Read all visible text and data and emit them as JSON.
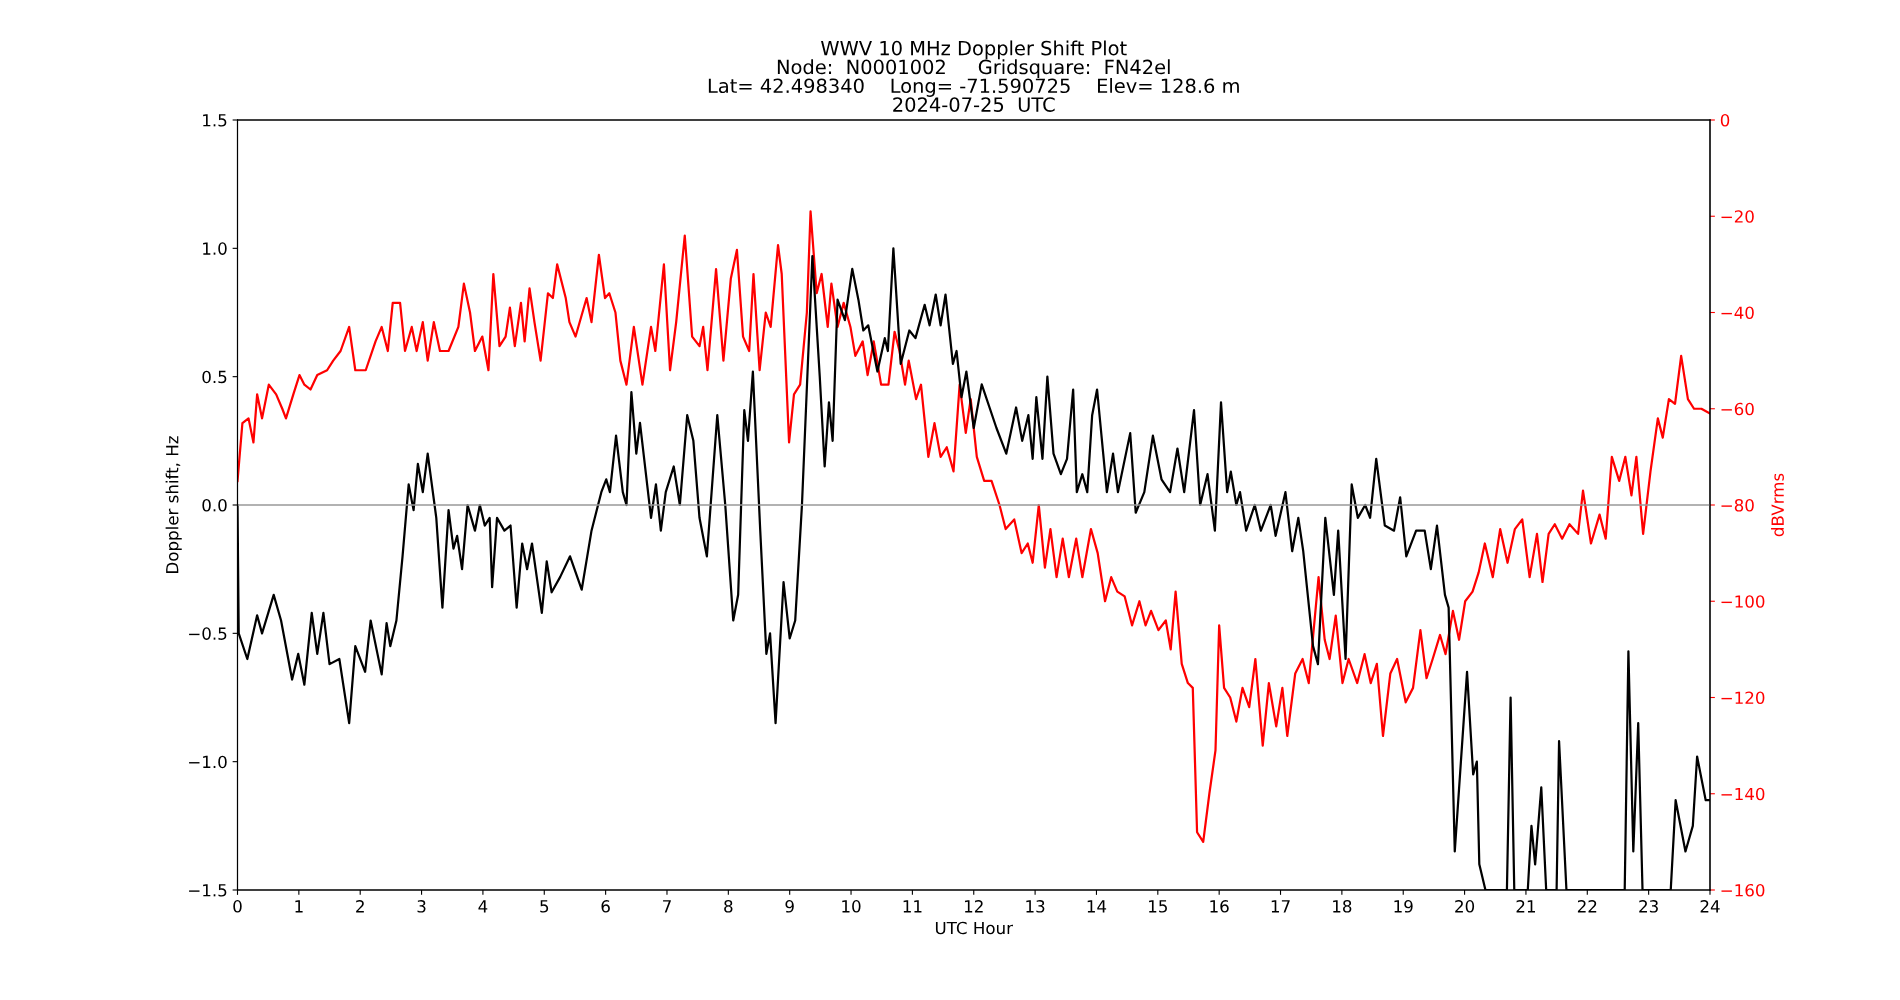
{
  "chart_data": {
    "type": "line",
    "title": "WWV 10 MHz Doppler Shift Plot\nNode:  N0001002     Gridsquare:  FN42el\nLat= 42.498340    Long= -71.590725    Elev= 128.6 m\n2024-07-25  UTC",
    "xlabel": "UTC Hour",
    "ylabel": "Doppler shift, Hz",
    "y2label": "dBVrms",
    "xlim": [
      0,
      24
    ],
    "xticks": [
      0,
      1,
      2,
      3,
      4,
      5,
      6,
      7,
      8,
      9,
      10,
      11,
      12,
      13,
      14,
      15,
      16,
      17,
      18,
      19,
      20,
      21,
      22,
      23,
      24
    ],
    "ylim": [
      -1.5,
      1.5
    ],
    "yticks": [
      {
        "value": -1.5,
        "label": "−1.5"
      },
      {
        "value": -1.0,
        "label": "−1.0"
      },
      {
        "value": -0.5,
        "label": "−0.5"
      },
      {
        "value": 0.0,
        "label": "0.0"
      },
      {
        "value": 0.5,
        "label": "0.5"
      },
      {
        "value": 1.0,
        "label": "1.0"
      },
      {
        "value": 1.5,
        "label": "1.5"
      }
    ],
    "y2lim": [
      -160,
      0
    ],
    "y2ticks": [
      {
        "value": -160,
        "label": "−160"
      },
      {
        "value": -140,
        "label": "−140"
      },
      {
        "value": -120,
        "label": "−120"
      },
      {
        "value": -100,
        "label": "−100"
      },
      {
        "value": -80,
        "label": "−80"
      },
      {
        "value": -60,
        "label": "−60"
      },
      {
        "value": -40,
        "label": "−40"
      },
      {
        "value": -20,
        "label": "−20"
      },
      {
        "value": 0,
        "label": "0"
      }
    ],
    "grid": false,
    "legend": false,
    "ref_lines": [
      {
        "axis": "y",
        "value": 0,
        "color": "#999999"
      }
    ],
    "series": [
      {
        "color": "#000000",
        "axis": "y",
        "x": [
          0,
          0.02,
          0.16,
          0.32,
          0.4,
          0.59,
          0.71,
          0.89,
          0.99,
          1.09,
          1.21,
          1.3,
          1.4,
          1.5,
          1.66,
          1.82,
          1.92,
          2.08,
          2.17,
          2.35,
          2.43,
          2.49,
          2.59,
          2.69,
          2.79,
          2.87,
          2.94,
          3.02,
          3.1,
          3.24,
          3.34,
          3.44,
          3.52,
          3.58,
          3.66,
          3.75,
          3.87,
          3.95,
          4.03,
          4.11,
          4.15,
          4.23,
          4.35,
          4.45,
          4.55,
          4.64,
          4.72,
          4.8,
          4.96,
          5.04,
          5.12,
          5.26,
          5.42,
          5.61,
          5.77,
          5.93,
          6.01,
          6.07,
          6.17,
          6.28,
          6.34,
          6.42,
          6.5,
          6.56,
          6.74,
          6.82,
          6.9,
          6.98,
          7.11,
          7.21,
          7.33,
          7.43,
          7.53,
          7.65,
          7.82,
          7.95,
          8.08,
          8.16,
          8.26,
          8.32,
          8.4,
          8.52,
          8.62,
          8.68,
          8.77,
          8.9,
          9.0,
          9.09,
          9.2,
          9.37,
          9.49,
          9.57,
          9.64,
          9.7,
          9.78,
          9.9,
          10.02,
          10.12,
          10.2,
          10.28,
          10.43,
          10.55,
          10.6,
          10.69,
          10.81,
          10.95,
          11.05,
          11.2,
          11.28,
          11.38,
          11.46,
          11.54,
          11.66,
          11.72,
          11.8,
          11.88,
          12.0,
          12.13,
          12.37,
          12.53,
          12.69,
          12.79,
          12.89,
          12.96,
          13.02,
          13.12,
          13.2,
          13.3,
          13.42,
          13.52,
          13.62,
          13.68,
          13.77,
          13.85,
          13.93,
          14.01,
          14.11,
          14.17,
          14.27,
          14.35,
          14.55,
          14.64,
          14.78,
          14.92,
          15.06,
          15.2,
          15.32,
          15.43,
          15.59,
          15.69,
          15.81,
          15.93,
          16.03,
          16.13,
          16.19,
          16.28,
          16.34,
          16.44,
          16.58,
          16.68,
          16.84,
          16.92,
          17.08,
          17.19,
          17.29,
          17.37,
          17.53,
          17.61,
          17.73,
          17.87,
          17.94,
          18.06,
          18.16,
          18.26,
          18.38,
          18.46,
          18.56,
          18.7,
          18.85,
          18.95,
          19.05,
          19.21,
          19.35,
          19.45,
          19.55,
          19.68,
          19.74,
          19.84,
          19.94,
          20.04,
          20.14,
          20.2,
          20.24,
          20.34,
          20.69,
          20.75,
          20.81,
          21.03,
          21.09,
          21.15,
          21.25,
          21.33,
          21.5,
          21.54,
          21.66,
          22.61,
          22.67,
          22.75,
          22.83,
          22.9,
          23.36,
          23.44,
          23.6,
          23.72,
          23.79,
          23.93,
          24
        ],
        "values": [
          0.0,
          -0.5,
          -0.6,
          -0.43,
          -0.5,
          -0.35,
          -0.45,
          -0.68,
          -0.58,
          -0.7,
          -0.42,
          -0.58,
          -0.42,
          -0.62,
          -0.6,
          -0.85,
          -0.55,
          -0.65,
          -0.45,
          -0.66,
          -0.46,
          -0.55,
          -0.45,
          -0.2,
          0.08,
          -0.02,
          0.16,
          0.05,
          0.2,
          -0.05,
          -0.4,
          -0.02,
          -0.17,
          -0.12,
          -0.25,
          0.0,
          -0.1,
          0.0,
          -0.08,
          -0.05,
          -0.32,
          -0.05,
          -0.1,
          -0.08,
          -0.4,
          -0.15,
          -0.25,
          -0.15,
          -0.42,
          -0.22,
          -0.34,
          -0.28,
          -0.2,
          -0.33,
          -0.1,
          0.05,
          0.1,
          0.05,
          0.27,
          0.05,
          0.0,
          0.44,
          0.2,
          0.32,
          -0.05,
          0.08,
          -0.1,
          0.05,
          0.15,
          0.0,
          0.35,
          0.25,
          -0.05,
          -0.2,
          0.35,
          0.0,
          -0.45,
          -0.35,
          0.37,
          0.25,
          0.52,
          -0.1,
          -0.58,
          -0.5,
          -0.85,
          -0.3,
          -0.52,
          -0.45,
          0.0,
          0.97,
          0.5,
          0.15,
          0.4,
          0.25,
          0.8,
          0.72,
          0.92,
          0.8,
          0.68,
          0.7,
          0.52,
          0.65,
          0.6,
          1.0,
          0.55,
          0.68,
          0.65,
          0.78,
          0.7,
          0.82,
          0.7,
          0.82,
          0.55,
          0.6,
          0.42,
          0.52,
          0.3,
          0.47,
          0.3,
          0.2,
          0.38,
          0.25,
          0.35,
          0.18,
          0.42,
          0.18,
          0.5,
          0.2,
          0.12,
          0.18,
          0.45,
          0.05,
          0.12,
          0.05,
          0.35,
          0.45,
          0.2,
          0.05,
          0.2,
          0.05,
          0.28,
          -0.03,
          0.05,
          0.27,
          0.1,
          0.05,
          0.22,
          0.05,
          0.37,
          0.0,
          0.12,
          -0.1,
          0.4,
          0.05,
          0.13,
          0.0,
          0.05,
          -0.1,
          0.0,
          -0.1,
          0.0,
          -0.12,
          0.05,
          -0.18,
          -0.05,
          -0.18,
          -0.55,
          -0.62,
          -0.05,
          -0.35,
          -0.1,
          -0.6,
          0.08,
          -0.05,
          0.0,
          -0.05,
          0.18,
          -0.08,
          -0.1,
          0.03,
          -0.2,
          -0.1,
          -0.1,
          -0.25,
          -0.08,
          -0.35,
          -0.4,
          -1.35,
          -1.0,
          -0.65,
          -1.05,
          -1.0,
          -1.4,
          -1.5,
          -1.5,
          -0.75,
          -1.5,
          -1.5,
          -1.25,
          -1.4,
          -1.1,
          -1.5,
          -1.5,
          -0.92,
          -1.5,
          -1.5,
          -0.57,
          -1.35,
          -0.85,
          -1.5,
          -1.5,
          -1.15,
          -1.35,
          -1.25,
          -0.98,
          -1.15,
          -1.15
        ]
      },
      {
        "color": "#ff0000",
        "axis": "y2",
        "x": [
          0,
          0.08,
          0.18,
          0.26,
          0.32,
          0.4,
          0.51,
          0.63,
          0.73,
          0.79,
          0.91,
          1.01,
          1.09,
          1.19,
          1.3,
          1.46,
          1.56,
          1.68,
          1.82,
          1.92,
          2.09,
          2.25,
          2.35,
          2.45,
          2.53,
          2.65,
          2.73,
          2.84,
          2.92,
          3.02,
          3.1,
          3.2,
          3.3,
          3.44,
          3.6,
          3.69,
          3.79,
          3.87,
          3.99,
          4.09,
          4.17,
          4.27,
          4.37,
          4.44,
          4.52,
          4.62,
          4.68,
          4.76,
          4.84,
          4.94,
          5.06,
          5.14,
          5.21,
          5.35,
          5.41,
          5.51,
          5.69,
          5.77,
          5.89,
          5.99,
          6.06,
          6.16,
          6.24,
          6.34,
          6.46,
          6.6,
          6.74,
          6.81,
          6.95,
          7.05,
          7.15,
          7.29,
          7.41,
          7.53,
          7.59,
          7.66,
          7.8,
          7.92,
          8.04,
          8.14,
          8.24,
          8.34,
          8.41,
          8.51,
          8.61,
          8.69,
          8.81,
          8.87,
          8.99,
          9.07,
          9.17,
          9.28,
          9.34,
          9.44,
          9.52,
          9.62,
          9.68,
          9.78,
          9.88,
          9.99,
          10.07,
          10.19,
          10.27,
          10.37,
          10.49,
          10.61,
          10.71,
          10.79,
          10.88,
          10.94,
          11.06,
          11.14,
          11.26,
          11.36,
          11.46,
          11.56,
          11.67,
          11.77,
          11.87,
          11.95,
          12.05,
          12.17,
          12.29,
          12.42,
          12.52,
          12.66,
          12.78,
          12.88,
          12.96,
          13.06,
          13.16,
          13.25,
          13.35,
          13.45,
          13.55,
          13.67,
          13.77,
          13.91,
          14.02,
          14.14,
          14.24,
          14.34,
          14.46,
          14.58,
          14.7,
          14.8,
          14.89,
          15.01,
          15.13,
          15.21,
          15.29,
          15.39,
          15.49,
          15.57,
          15.64,
          15.74,
          15.84,
          15.94,
          16.0,
          16.08,
          16.18,
          16.28,
          16.38,
          16.49,
          16.59,
          16.71,
          16.81,
          16.93,
          17.03,
          17.11,
          17.24,
          17.36,
          17.46,
          17.62,
          17.72,
          17.8,
          17.9,
          18.01,
          18.11,
          18.25,
          18.37,
          18.47,
          18.57,
          18.67,
          18.79,
          18.9,
          19.04,
          19.16,
          19.28,
          19.38,
          19.48,
          19.6,
          19.69,
          19.81,
          19.91,
          20.01,
          20.13,
          20.23,
          20.33,
          20.46,
          20.58,
          20.7,
          20.82,
          20.94,
          21.06,
          21.18,
          21.27,
          21.37,
          21.47,
          21.59,
          21.71,
          21.85,
          21.93,
          22.06,
          22.2,
          22.3,
          22.4,
          22.52,
          22.62,
          22.72,
          22.8,
          22.91,
          23.03,
          23.15,
          23.23,
          23.33,
          23.43,
          23.53,
          23.64,
          23.74,
          23.86,
          24
        ],
        "values": [
          -75,
          -63,
          -62,
          -67,
          -57,
          -62,
          -55,
          -57,
          -60,
          -62,
          -57,
          -53,
          -55,
          -56,
          -53,
          -52,
          -50,
          -48,
          -43,
          -52,
          -52,
          -46,
          -43,
          -48,
          -38,
          -38,
          -48,
          -43,
          -48,
          -42,
          -50,
          -42,
          -48,
          -48,
          -43,
          -34,
          -40,
          -48,
          -45,
          -52,
          -32,
          -47,
          -45,
          -39,
          -47,
          -38,
          -46,
          -35,
          -42,
          -50,
          -36,
          -37,
          -30,
          -37,
          -42,
          -45,
          -37,
          -42,
          -28,
          -37,
          -36,
          -40,
          -50,
          -55,
          -43,
          -55,
          -43,
          -48,
          -30,
          -52,
          -42,
          -24,
          -45,
          -47,
          -43,
          -52,
          -31,
          -50,
          -33,
          -27,
          -45,
          -48,
          -32,
          -52,
          -40,
          -43,
          -26,
          -32,
          -67,
          -57,
          -55,
          -40,
          -19,
          -36,
          -32,
          -43,
          -34,
          -43,
          -38,
          -43,
          -49,
          -46,
          -53,
          -46,
          -55,
          -55,
          -44,
          -48,
          -55,
          -50,
          -58,
          -55,
          -70,
          -63,
          -70,
          -68,
          -73,
          -55,
          -65,
          -58,
          -70,
          -75,
          -75,
          -80,
          -85,
          -83,
          -90,
          -88,
          -92,
          -80,
          -93,
          -85,
          -95,
          -87,
          -95,
          -87,
          -95,
          -85,
          -90,
          -100,
          -95,
          -98,
          -99,
          -105,
          -100,
          -105,
          -102,
          -106,
          -104,
          -110,
          -98,
          -113,
          -117,
          -118,
          -148,
          -150,
          -140,
          -131,
          -105,
          -118,
          -120,
          -125,
          -118,
          -122,
          -112,
          -130,
          -117,
          -126,
          -118,
          -128,
          -115,
          -112,
          -117,
          -95,
          -108,
          -112,
          -103,
          -117,
          -112,
          -117,
          -111,
          -117,
          -113,
          -128,
          -115,
          -112,
          -121,
          -118,
          -106,
          -116,
          -112,
          -107,
          -111,
          -102,
          -108,
          -100,
          -98,
          -94,
          -88,
          -95,
          -85,
          -92,
          -85,
          -83,
          -95,
          -86,
          -96,
          -86,
          -84,
          -87,
          -84,
          -86,
          -77,
          -88,
          -82,
          -87,
          -70,
          -75,
          -70,
          -78,
          -70,
          -86,
          -73,
          -62,
          -66,
          -58,
          -59,
          -49,
          -58,
          -60,
          -60,
          -61
        ]
      }
    ]
  }
}
